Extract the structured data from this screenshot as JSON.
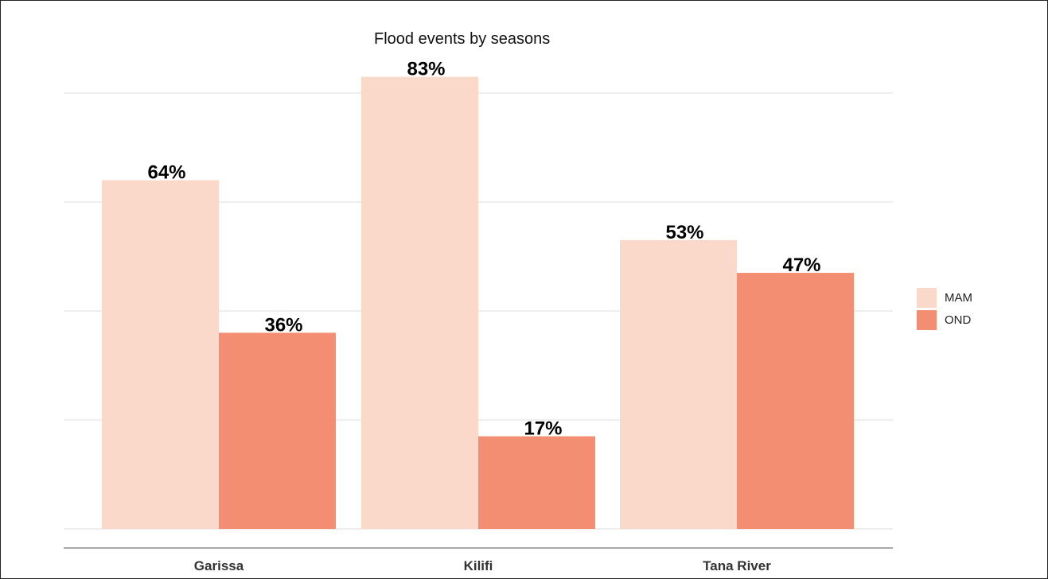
{
  "chart_data": {
    "type": "bar",
    "title": "Flood events by seasons",
    "categories": [
      "Garissa",
      "Kilifi",
      "Tana River"
    ],
    "series": [
      {
        "name": "MAM",
        "values": [
          64,
          83,
          53
        ],
        "labels": [
          "64%",
          "83%",
          "53%"
        ],
        "color": "#fad8ca"
      },
      {
        "name": "OND",
        "values": [
          36,
          17,
          47
        ],
        "labels": [
          "36%",
          "17%",
          "47%"
        ],
        "color": "#f48e72"
      }
    ],
    "xlabel": "",
    "ylabel": "",
    "ylim": [
      0,
      100
    ],
    "grid": true,
    "legend": "right"
  }
}
